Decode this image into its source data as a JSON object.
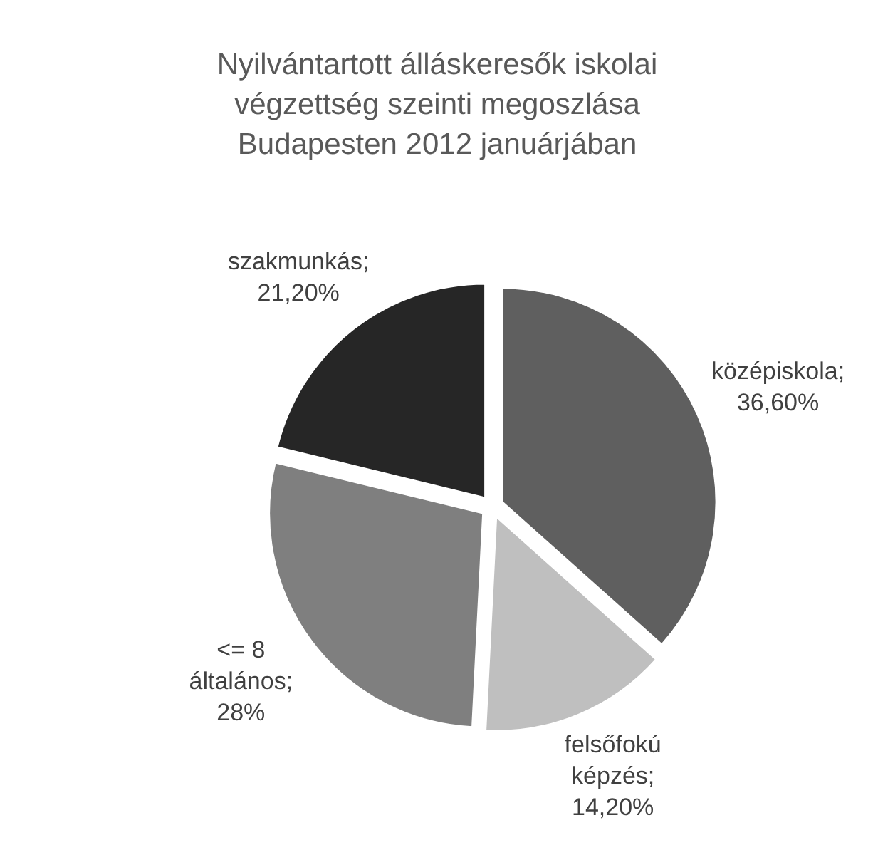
{
  "chart_data": {
    "type": "pie",
    "title": "Nyilvántartott álláskeresők iskolai végzettség szeinti megoszlása Budapesten 2012 januárjában",
    "categories": [
      "középiskola",
      "felsőfokú képzés",
      "<= 8 általános",
      "szakmunkás"
    ],
    "values": [
      36.6,
      14.2,
      28,
      21.2
    ],
    "value_labels": [
      "; 36,60%",
      "; 14,20%",
      "; 28%",
      "; 21,20%"
    ],
    "colors": [
      "#5f5f5f",
      "#bfbfbf",
      "#7f7f7f",
      "#262626"
    ]
  }
}
